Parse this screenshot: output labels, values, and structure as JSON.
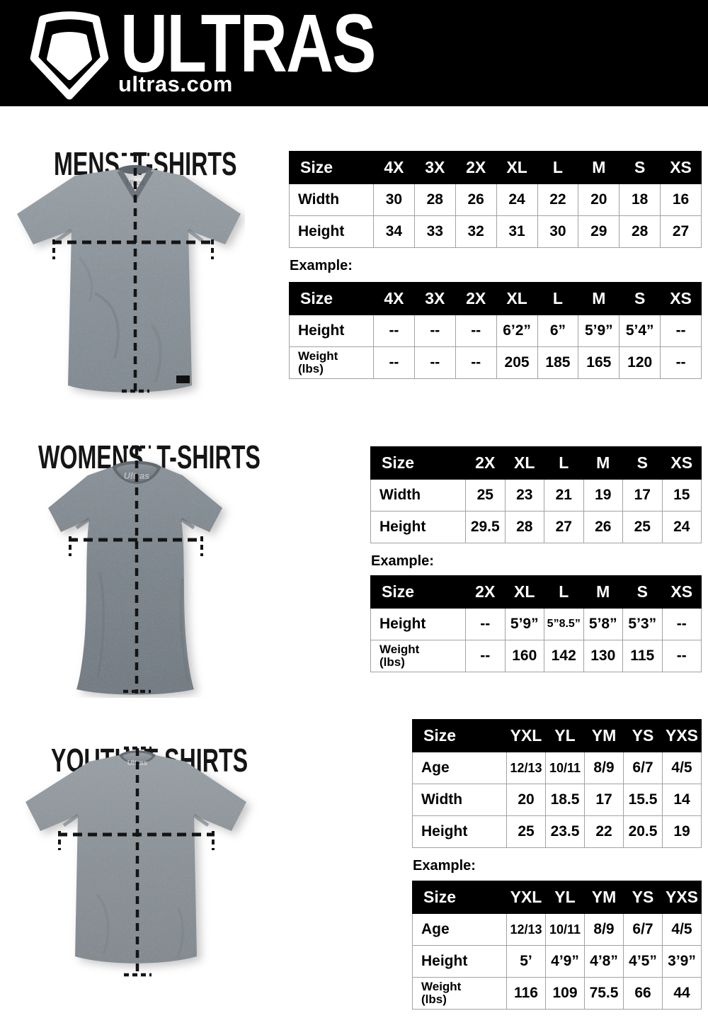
{
  "header": {
    "brand": "ULTRAS",
    "site": "ultras.com",
    "bg_color": "#000000",
    "logo_icon": "pentagon-shield-icon"
  },
  "sections": [
    {
      "id": "mens",
      "heading": "MENS T-SHIRTS",
      "example_label": "Example:",
      "shirt_color": "#8b939a",
      "shirt_style": "v-neck",
      "size_table": {
        "header": [
          "Size",
          "4X",
          "3X",
          "2X",
          "XL",
          "L",
          "M",
          "S",
          "XS"
        ],
        "rows": [
          {
            "label": "Width",
            "cells": [
              "30",
              "28",
              "26",
              "24",
              "22",
              "20",
              "18",
              "16"
            ]
          },
          {
            "label": "Height",
            "cells": [
              "34",
              "33",
              "32",
              "31",
              "30",
              "29",
              "28",
              "27"
            ]
          }
        ]
      },
      "example_table": {
        "header": [
          "Size",
          "4X",
          "3X",
          "2X",
          "XL",
          "L",
          "M",
          "S",
          "XS"
        ],
        "rows": [
          {
            "label": "Height",
            "cells": [
              "--",
              "--",
              "--",
              "6’2”",
              "6”",
              "5’9”",
              "5’4”",
              "--"
            ]
          },
          {
            "label": "Weight\n(lbs)",
            "cells": [
              "--",
              "--",
              "--",
              "205",
              "185",
              "165",
              "120",
              "--"
            ]
          }
        ]
      }
    },
    {
      "id": "womens",
      "heading": "WOMENS T-SHIRTS",
      "example_label": "Example:",
      "shirt_color": "#7d858c",
      "shirt_style": "fitted-crew",
      "size_table": {
        "header": [
          "Size",
          "2X",
          "XL",
          "L",
          "M",
          "S",
          "XS"
        ],
        "rows": [
          {
            "label": "Width",
            "cells": [
              "25",
              "23",
              "21",
              "19",
              "17",
              "15"
            ]
          },
          {
            "label": "Height",
            "cells": [
              "29.5",
              "28",
              "27",
              "26",
              "25",
              "24"
            ]
          }
        ]
      },
      "example_table": {
        "header": [
          "Size",
          "2X",
          "XL",
          "L",
          "M",
          "S",
          "XS"
        ],
        "rows": [
          {
            "label": "Height",
            "cells": [
              "--",
              "5’9”",
              "5”8.5”",
              "5’8”",
              "5’3”",
              "--"
            ]
          },
          {
            "label": "Weight\n(lbs)",
            "cells": [
              "--",
              "160",
              "142",
              "130",
              "115",
              "--"
            ]
          }
        ]
      }
    },
    {
      "id": "youth",
      "heading": "YOUTH T-SHIRTS",
      "example_label": "Example:",
      "shirt_color": "#8c9398",
      "shirt_style": "crew",
      "size_table": {
        "header": [
          "Size",
          "YXL",
          "YL",
          "YM",
          "YS",
          "YXS"
        ],
        "rows": [
          {
            "label": "Age",
            "cells": [
              "12/13",
              "10/11",
              "8/9",
              "6/7",
              "4/5"
            ]
          },
          {
            "label": "Width",
            "cells": [
              "20",
              "18.5",
              "17",
              "15.5",
              "14"
            ]
          },
          {
            "label": "Height",
            "cells": [
              "25",
              "23.5",
              "22",
              "20.5",
              "19"
            ]
          }
        ]
      },
      "example_table": {
        "header": [
          "Size",
          "YXL",
          "YL",
          "YM",
          "YS",
          "YXS"
        ],
        "rows": [
          {
            "label": "Age",
            "cells": [
              "12/13",
              "10/11",
              "8/9",
              "6/7",
              "4/5"
            ]
          },
          {
            "label": "Height",
            "cells": [
              "5’",
              "4’9”",
              "4’8”",
              "4’5”",
              "3’9”"
            ]
          },
          {
            "label": "Weight\n(lbs)",
            "cells": [
              "116",
              "109",
              "75.5",
              "66",
              "44"
            ]
          }
        ]
      }
    }
  ]
}
